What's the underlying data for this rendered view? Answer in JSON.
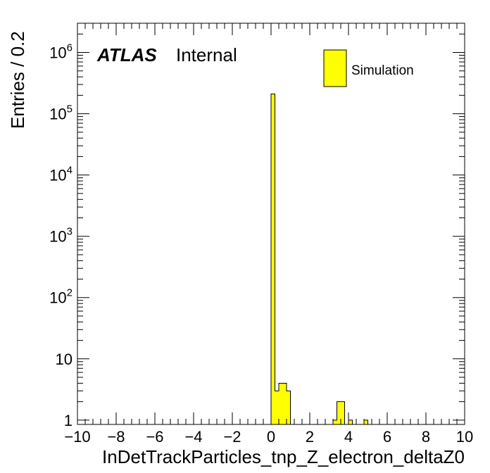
{
  "chart_data": {
    "type": "bar",
    "xlabel": "InDetTrackParticles_tnp_Z_electron_deltaZ0",
    "ylabel": "Entries / 0.2",
    "yscale": "log",
    "xlim": [
      -10,
      10
    ],
    "ylim": [
      0.85,
      3000000
    ],
    "xticks": [
      -10,
      -8,
      -6,
      -4,
      -2,
      0,
      2,
      4,
      6,
      8,
      10
    ],
    "xtick_labels": [
      "−10",
      "−8",
      "−6",
      "−4",
      "−2",
      "0",
      "2",
      "4",
      "6",
      "8",
      "10"
    ],
    "yticks": [
      {
        "value": 1,
        "base": "1",
        "exp": ""
      },
      {
        "value": 10,
        "base": "10",
        "exp": ""
      },
      {
        "value": 100,
        "base": "10",
        "exp": "2"
      },
      {
        "value": 1000,
        "base": "10",
        "exp": "3"
      },
      {
        "value": 10000,
        "base": "10",
        "exp": "4"
      },
      {
        "value": 100000,
        "base": "10",
        "exp": "5"
      },
      {
        "value": 1000000,
        "base": "10",
        "exp": "6"
      }
    ],
    "bin_width": 0.2,
    "bins": [
      {
        "x": 0.0,
        "value": 210000
      },
      {
        "x": 0.2,
        "value": 3
      },
      {
        "x": 0.4,
        "value": 4
      },
      {
        "x": 0.6,
        "value": 4
      },
      {
        "x": 0.8,
        "value": 3
      },
      {
        "x": 3.2,
        "value": 1
      },
      {
        "x": 3.4,
        "value": 2
      },
      {
        "x": 3.6,
        "value": 2
      },
      {
        "x": 4.0,
        "value": 1
      },
      {
        "x": 4.8,
        "value": 1
      }
    ],
    "fill_color": "#ffff00",
    "edge_color": "#000000",
    "legend": {
      "placement": "top-right",
      "entries": [
        "Simulation"
      ]
    },
    "labels": {
      "atlas": "ATLAS",
      "status": "Internal"
    }
  }
}
